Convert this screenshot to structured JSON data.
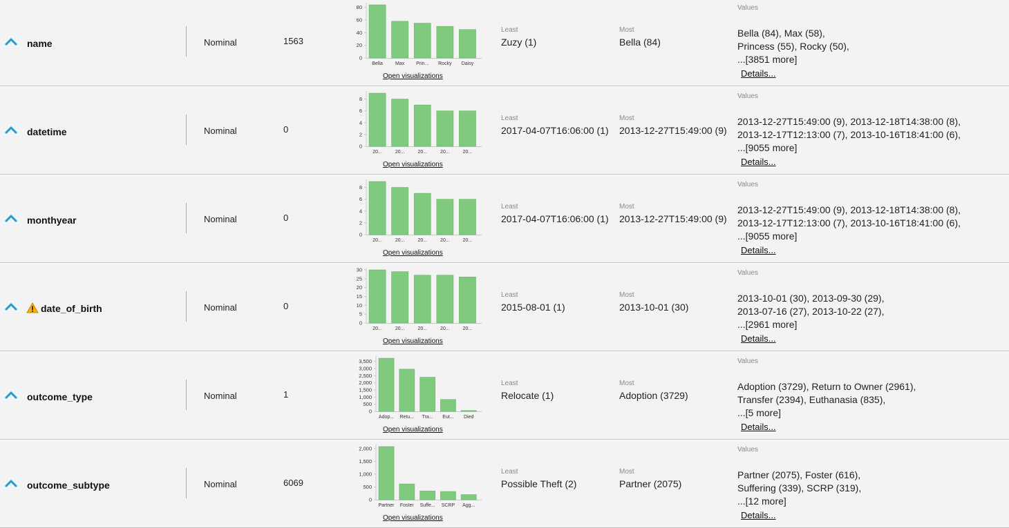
{
  "labels": {
    "open_visualizations": "Open visualizations",
    "least": "Least",
    "most": "Most",
    "values": "Values",
    "details": "Details..."
  },
  "colors": {
    "bar": "#7fca7f",
    "bar_stroke": "#6ab46a",
    "chevron": "#1a9bd7",
    "warning": "#f0b400"
  },
  "attributes": [
    {
      "name": "name",
      "warning": false,
      "type": "Nominal",
      "missing": "1563",
      "least": "Zuzy (1)",
      "most": "Bella (84)",
      "values_lines": [
        "Bella (84), Max (58),",
        "Princess (55), Rocky (50),",
        "...[3851 more]"
      ],
      "chart_data": {
        "type": "bar",
        "categories": [
          "Bella",
          "Max",
          "Prin...",
          "Rocky",
          "Daisy"
        ],
        "values": [
          84,
          58,
          55,
          50,
          45
        ],
        "ylim": [
          0,
          84
        ],
        "yticks": [
          0,
          20,
          40,
          60,
          80
        ],
        "ytick_labels": [
          "0",
          "20",
          "40",
          "60",
          "80"
        ]
      }
    },
    {
      "name": "datetime",
      "warning": false,
      "type": "Nominal",
      "missing": "0",
      "least": "2017-04-07T16:06:00 (1)",
      "most": "2013-12-27T15:49:00 (9)",
      "values_lines": [
        "2013-12-27T15:49:00 (9), 2013-12-18T14:38:00 (8),",
        "2013-12-17T12:13:00 (7), 2013-10-16T18:41:00 (6),",
        "...[9055 more]"
      ],
      "chart_data": {
        "type": "bar",
        "categories": [
          "20...",
          "20...",
          "20...",
          "20...",
          "20..."
        ],
        "values": [
          9,
          8,
          7,
          6,
          6
        ],
        "ylim": [
          0,
          9
        ],
        "yticks": [
          0,
          2,
          4,
          6,
          8
        ],
        "ytick_labels": [
          "0",
          "2",
          "4",
          "6",
          "8"
        ]
      }
    },
    {
      "name": "monthyear",
      "warning": false,
      "type": "Nominal",
      "missing": "0",
      "least": "2017-04-07T16:06:00 (1)",
      "most": "2013-12-27T15:49:00 (9)",
      "values_lines": [
        "2013-12-27T15:49:00 (9), 2013-12-18T14:38:00 (8),",
        "2013-12-17T12:13:00 (7), 2013-10-16T18:41:00 (6),",
        "...[9055 more]"
      ],
      "chart_data": {
        "type": "bar",
        "categories": [
          "20...",
          "20...",
          "20...",
          "20...",
          "20..."
        ],
        "values": [
          9,
          8,
          7,
          6,
          6
        ],
        "ylim": [
          0,
          9
        ],
        "yticks": [
          0,
          2,
          4,
          6,
          8
        ],
        "ytick_labels": [
          "0",
          "2",
          "4",
          "6",
          "8"
        ]
      }
    },
    {
      "name": "date_of_birth",
      "warning": true,
      "type": "Nominal",
      "missing": "0",
      "least": "2015-08-01 (1)",
      "most": "2013-10-01 (30)",
      "values_lines": [
        "2013-10-01 (30), 2013-09-30 (29),",
        "2013-07-16 (27), 2013-10-22 (27),",
        "...[2961 more]"
      ],
      "chart_data": {
        "type": "bar",
        "categories": [
          "20...",
          "20...",
          "20...",
          "20...",
          "20..."
        ],
        "values": [
          30,
          29,
          27,
          27,
          26
        ],
        "ylim": [
          0,
          30
        ],
        "yticks": [
          0,
          5,
          10,
          15,
          20,
          25,
          30
        ],
        "ytick_labels": [
          "0",
          "5",
          "10",
          "15",
          "20",
          "25",
          "30"
        ]
      }
    },
    {
      "name": "outcome_type",
      "warning": false,
      "type": "Nominal",
      "missing": "1",
      "least": "Relocate (1)",
      "most": "Adoption (3729)",
      "values_lines": [
        "Adoption (3729), Return to Owner (2961),",
        "Transfer (2394), Euthanasia (835),",
        "...[5 more]"
      ],
      "chart_data": {
        "type": "bar",
        "categories": [
          "Adop...",
          "Retu...",
          "Tra...",
          "Eut...",
          "Died"
        ],
        "values": [
          3729,
          2961,
          2394,
          835,
          60
        ],
        "ylim": [
          0,
          3729
        ],
        "yticks": [
          0,
          500,
          1000,
          1500,
          2000,
          2500,
          3000,
          3500
        ],
        "ytick_labels": [
          "0",
          "500",
          "1,000",
          "1,500",
          "2,000",
          "2,500",
          "3,000",
          "3,500"
        ]
      }
    },
    {
      "name": "outcome_subtype",
      "warning": false,
      "type": "Nominal",
      "missing": "6069",
      "least": "Possible Theft (2)",
      "most": "Partner (2075)",
      "values_lines": [
        "Partner (2075), Foster (616),",
        "Suffering (339), SCRP (319),",
        "...[12 more]"
      ],
      "chart_data": {
        "type": "bar",
        "categories": [
          "Partner",
          "Foster",
          "Suffe...",
          "SCRP",
          "Agg..."
        ],
        "values": [
          2075,
          616,
          339,
          319,
          200
        ],
        "ylim": [
          0,
          2075
        ],
        "yticks": [
          0,
          500,
          1000,
          1500,
          2000
        ],
        "ytick_labels": [
          "0",
          "500",
          "1,000",
          "1,500",
          "2,000"
        ]
      }
    }
  ]
}
